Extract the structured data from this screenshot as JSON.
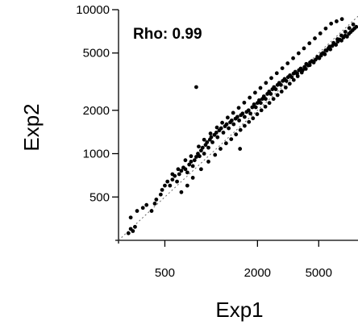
{
  "chart_data": {
    "type": "scatter",
    "xlabel": "Exp1",
    "ylabel": "Exp2",
    "annotation": "Rho: 0.99",
    "x_scale": "log",
    "y_scale": "log",
    "xlim": [
      250,
      9000
    ],
    "ylim": [
      250,
      10000
    ],
    "x_ticks": [
      500,
      2000,
      5000
    ],
    "x_tick_labels": [
      "500",
      "2000",
      "5000"
    ],
    "y_ticks": [
      500,
      1000,
      2000,
      5000,
      10000
    ],
    "y_tick_labels": [
      "500",
      "1000",
      "2000",
      "5000",
      "10000"
    ],
    "reference_line": "y = x (dotted)",
    "point_color": "#000000",
    "points": [
      [
        290,
        280
      ],
      [
        300,
        300
      ],
      [
        310,
        290
      ],
      [
        320,
        310
      ],
      [
        300,
        360
      ],
      [
        330,
        400
      ],
      [
        360,
        420
      ],
      [
        380,
        440
      ],
      [
        410,
        400
      ],
      [
        430,
        450
      ],
      [
        440,
        480
      ],
      [
        470,
        520
      ],
      [
        480,
        560
      ],
      [
        500,
        600
      ],
      [
        520,
        640
      ],
      [
        540,
        600
      ],
      [
        560,
        660
      ],
      [
        580,
        700
      ],
      [
        600,
        640
      ],
      [
        620,
        720
      ],
      [
        640,
        760
      ],
      [
        660,
        800
      ],
      [
        680,
        780
      ],
      [
        700,
        740
      ],
      [
        720,
        840
      ],
      [
        740,
        880
      ],
      [
        760,
        820
      ],
      [
        780,
        900
      ],
      [
        800,
        950
      ],
      [
        820,
        1000
      ],
      [
        840,
        960
      ],
      [
        860,
        1050
      ],
      [
        880,
        1100
      ],
      [
        900,
        1000
      ],
      [
        920,
        1150
      ],
      [
        940,
        1200
      ],
      [
        960,
        1100
      ],
      [
        980,
        1250
      ],
      [
        1000,
        1300
      ],
      [
        1020,
        1200
      ],
      [
        1050,
        1350
      ],
      [
        1080,
        1400
      ],
      [
        1100,
        1300
      ],
      [
        1130,
        1450
      ],
      [
        1160,
        1500
      ],
      [
        1200,
        1400
      ],
      [
        1230,
        1550
      ],
      [
        1260,
        1600
      ],
      [
        1300,
        1500
      ],
      [
        1330,
        1650
      ],
      [
        1360,
        1700
      ],
      [
        1400,
        1600
      ],
      [
        1440,
        1750
      ],
      [
        1480,
        1800
      ],
      [
        1520,
        1700
      ],
      [
        1560,
        1850
      ],
      [
        1600,
        1900
      ],
      [
        1650,
        1800
      ],
      [
        1700,
        1950
      ],
      [
        1750,
        2000
      ],
      [
        1800,
        1900
      ],
      [
        1850,
        2100
      ],
      [
        1900,
        2200
      ],
      [
        1950,
        2100
      ],
      [
        2000,
        2250
      ],
      [
        2050,
        2350
      ],
      [
        2100,
        2250
      ],
      [
        2150,
        2400
      ],
      [
        2200,
        2500
      ],
      [
        2260,
        2400
      ],
      [
        2320,
        2600
      ],
      [
        2380,
        2700
      ],
      [
        2440,
        2600
      ],
      [
        2500,
        2800
      ],
      [
        2560,
        2900
      ],
      [
        2630,
        2800
      ],
      [
        2700,
        3000
      ],
      [
        2770,
        3100
      ],
      [
        2840,
        3000
      ],
      [
        2920,
        3200
      ],
      [
        3000,
        3300
      ],
      [
        3080,
        3200
      ],
      [
        3160,
        3400
      ],
      [
        3250,
        3500
      ],
      [
        3340,
        3400
      ],
      [
        3430,
        3600
      ],
      [
        3520,
        3700
      ],
      [
        3620,
        3600
      ],
      [
        3720,
        3800
      ],
      [
        3820,
        3900
      ],
      [
        3930,
        3800
      ],
      [
        4040,
        4000
      ],
      [
        4150,
        4200
      ],
      [
        4270,
        4100
      ],
      [
        4390,
        4300
      ],
      [
        4510,
        4400
      ],
      [
        4640,
        4300
      ],
      [
        4770,
        4500
      ],
      [
        4900,
        4700
      ],
      [
        5040,
        4600
      ],
      [
        5180,
        4800
      ],
      [
        5330,
        5000
      ],
      [
        5480,
        4900
      ],
      [
        5630,
        5200
      ],
      [
        5790,
        5400
      ],
      [
        5950,
        5300
      ],
      [
        6120,
        5600
      ],
      [
        6290,
        5800
      ],
      [
        6470,
        5700
      ],
      [
        6650,
        6000
      ],
      [
        6840,
        6200
      ],
      [
        7030,
        6100
      ],
      [
        7230,
        6400
      ],
      [
        7430,
        6600
      ],
      [
        7640,
        6500
      ],
      [
        7850,
        6800
      ],
      [
        8070,
        7000
      ],
      [
        8300,
        7200
      ],
      [
        8530,
        7400
      ],
      [
        8770,
        7600
      ],
      [
        640,
        540
      ],
      [
        700,
        600
      ],
      [
        760,
        680
      ],
      [
        860,
        780
      ],
      [
        960,
        880
      ],
      [
        1060,
        980
      ],
      [
        1150,
        1080
      ],
      [
        1250,
        1180
      ],
      [
        1350,
        1260
      ],
      [
        1450,
        1360
      ],
      [
        1550,
        1460
      ],
      [
        1650,
        1560
      ],
      [
        1760,
        1660
      ],
      [
        1870,
        1760
      ],
      [
        1990,
        1880
      ],
      [
        2120,
        2000
      ],
      [
        2250,
        2120
      ],
      [
        2390,
        2250
      ],
      [
        2540,
        2400
      ],
      [
        2700,
        2550
      ],
      [
        2870,
        2700
      ],
      [
        3050,
        2880
      ],
      [
        3240,
        3060
      ],
      [
        3440,
        3250
      ],
      [
        3650,
        3450
      ],
      [
        3880,
        3660
      ],
      [
        4120,
        3880
      ],
      [
        4370,
        4120
      ],
      [
        4640,
        4370
      ],
      [
        4920,
        4640
      ],
      [
        5220,
        4920
      ],
      [
        5540,
        5220
      ],
      [
        5880,
        5540
      ],
      [
        6240,
        5880
      ],
      [
        6620,
        6240
      ],
      [
        7020,
        6620
      ],
      [
        7450,
        7020
      ],
      [
        7900,
        7450
      ],
      [
        8380,
        7900
      ],
      [
        800,
        2900
      ],
      [
        1540,
        1080
      ],
      [
        560,
        720
      ],
      [
        610,
        780
      ],
      [
        680,
        900
      ],
      [
        740,
        960
      ],
      [
        830,
        1120
      ],
      [
        900,
        1250
      ],
      [
        990,
        1380
      ],
      [
        1090,
        1520
      ],
      [
        1180,
        1640
      ],
      [
        1280,
        1780
      ],
      [
        1390,
        1920
      ],
      [
        1510,
        2080
      ],
      [
        1640,
        2260
      ],
      [
        1780,
        2450
      ],
      [
        1930,
        2650
      ],
      [
        2090,
        2860
      ],
      [
        2270,
        3100
      ],
      [
        2460,
        3350
      ],
      [
        2670,
        3620
      ],
      [
        2900,
        3920
      ],
      [
        3140,
        4240
      ],
      [
        3410,
        4600
      ],
      [
        3700,
        4980
      ],
      [
        4010,
        5390
      ],
      [
        4350,
        5840
      ],
      [
        4720,
        6320
      ],
      [
        5120,
        6840
      ],
      [
        5550,
        7400
      ],
      [
        6020,
        8000
      ],
      [
        6530,
        8300
      ],
      [
        7080,
        8600
      ]
    ]
  }
}
